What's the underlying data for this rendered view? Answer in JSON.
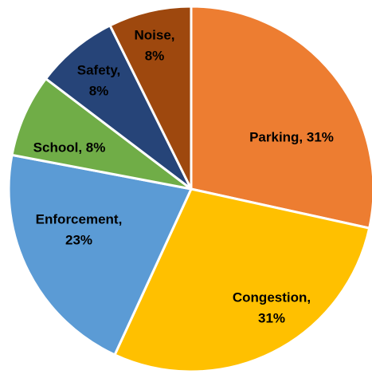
{
  "chart_data": {
    "type": "pie",
    "title": "",
    "slices": [
      {
        "label": "Parking",
        "value": 31,
        "value_text": "31%",
        "color": "#ED7D31",
        "label_lines": [
          "Parking, 31%"
        ]
      },
      {
        "label": "Congestion",
        "value": 31,
        "value_text": "31%",
        "color": "#FFC000",
        "label_lines": [
          "Congestion,",
          "31%"
        ]
      },
      {
        "label": "Enforcement",
        "value": 23,
        "value_text": "23%",
        "color": "#5B9BD5",
        "label_lines": [
          "Enforcement,",
          "23%"
        ]
      },
      {
        "label": "School",
        "value": 8,
        "value_text": "8%",
        "color": "#70AD47",
        "label_lines": [
          "School, 8%"
        ]
      },
      {
        "label": "Safety",
        "value": 8,
        "value_text": "8%",
        "color": "#264478",
        "label_lines": [
          "Safety,",
          "8%"
        ]
      },
      {
        "label": "Noise",
        "value": 8,
        "value_text": "8%",
        "color": "#9E480E",
        "label_lines": [
          "Noise,",
          "8%"
        ]
      }
    ],
    "start_angle_deg": 0,
    "direction": "clockwise",
    "legend": "none",
    "data_labels": "inside"
  }
}
